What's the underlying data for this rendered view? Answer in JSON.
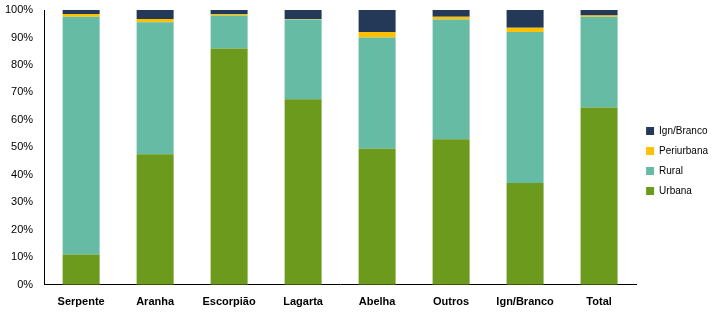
{
  "chart_data": {
    "type": "bar",
    "stacked": true,
    "grid": false,
    "legend": "right",
    "categories": [
      "Serpente",
      "Aranha",
      "Escorpião",
      "Lagarta",
      "Abelha",
      "Outros",
      "Ign/Branco",
      "Total"
    ],
    "series": [
      {
        "name": "Urbana",
        "color": "#6b9a1c",
        "values": [
          11,
          47.5,
          86,
          67.5,
          49.5,
          53,
          37,
          64.5
        ]
      },
      {
        "name": "Rural",
        "color": "#66bba4",
        "values": [
          86.5,
          48,
          12,
          29,
          40.5,
          43.5,
          55,
          33
        ]
      },
      {
        "name": "Periurbana",
        "color": "#ffc000",
        "values": [
          1,
          1.2,
          0.5,
          0.2,
          2,
          1,
          1.5,
          0.5
        ]
      },
      {
        "name": "Ign/Branco",
        "color": "#243858",
        "values": [
          1.5,
          3.3,
          1.5,
          3.3,
          8,
          2.5,
          6.5,
          2
        ]
      }
    ],
    "ylim": [
      0,
      100
    ],
    "yticks": [
      {
        "value": 0,
        "label": "0%"
      },
      {
        "value": 10,
        "label": "10%"
      },
      {
        "value": 20,
        "label": "20%"
      },
      {
        "value": 30,
        "label": "30%"
      },
      {
        "value": 40,
        "label": "40%"
      },
      {
        "value": 50,
        "label": "50%"
      },
      {
        "value": 60,
        "label": "60%"
      },
      {
        "value": 70,
        "label": "70%"
      },
      {
        "value": 80,
        "label": "80%"
      },
      {
        "value": 90,
        "label": "90%"
      },
      {
        "value": 100,
        "label": "100%"
      }
    ]
  }
}
